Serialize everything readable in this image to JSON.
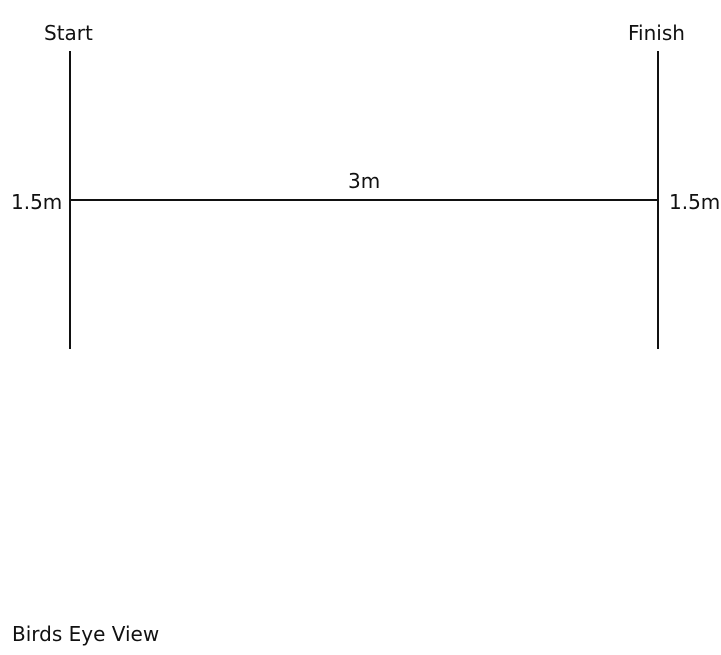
{
  "diagram": {
    "start_label": "Start",
    "finish_label": "Finish",
    "distance_label": "3m",
    "left_measure_label": "1.5m",
    "right_measure_label": "1.5m",
    "caption": "Birds Eye View",
    "line_color": "#111111"
  }
}
